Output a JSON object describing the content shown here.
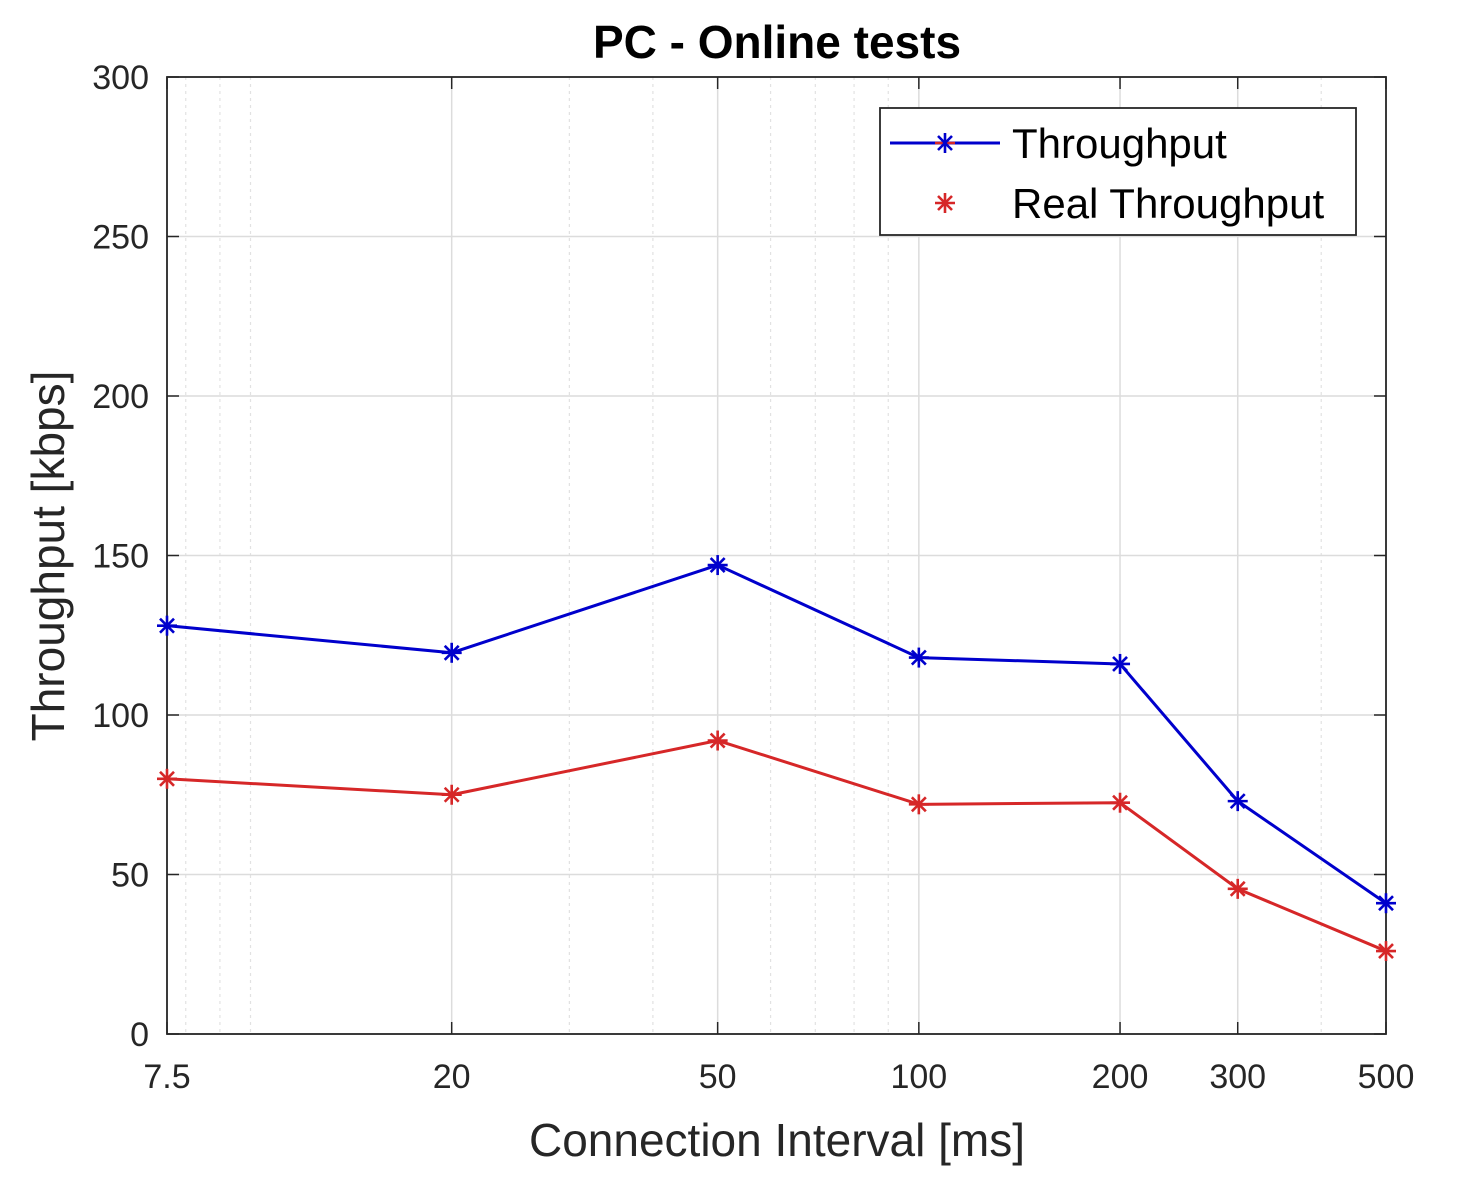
{
  "chart_data": {
    "type": "line",
    "title": "PC - Online tests",
    "xlabel": "Connection Interval [ms]",
    "ylabel": "Throughput [kbps]",
    "xscale": "log",
    "xlim": [
      7.5,
      500
    ],
    "ylim": [
      0,
      300
    ],
    "x": [
      7.5,
      20,
      50,
      100,
      200,
      300,
      500
    ],
    "xticks": [
      7.5,
      20,
      50,
      100,
      200,
      300,
      500
    ],
    "xtick_labels": [
      "7.5",
      "20",
      "50",
      "100",
      "200",
      "300",
      "500"
    ],
    "yticks": [
      0,
      50,
      100,
      150,
      200,
      250,
      300
    ],
    "ytick_labels": [
      "0",
      "50",
      "100",
      "150",
      "200",
      "250",
      "300"
    ],
    "grid": true,
    "minor_grid": true,
    "legend_position": "top-right",
    "series": [
      {
        "name": "Throughput",
        "color": "#0000cc",
        "marker": "asterisk",
        "values": [
          128,
          119.5,
          147,
          118,
          116,
          73,
          41
        ]
      },
      {
        "name": "Real Throughput",
        "color": "#d62728",
        "marker": "asterisk",
        "values": [
          80,
          75,
          92,
          72,
          72.5,
          45.5,
          26
        ]
      }
    ]
  }
}
